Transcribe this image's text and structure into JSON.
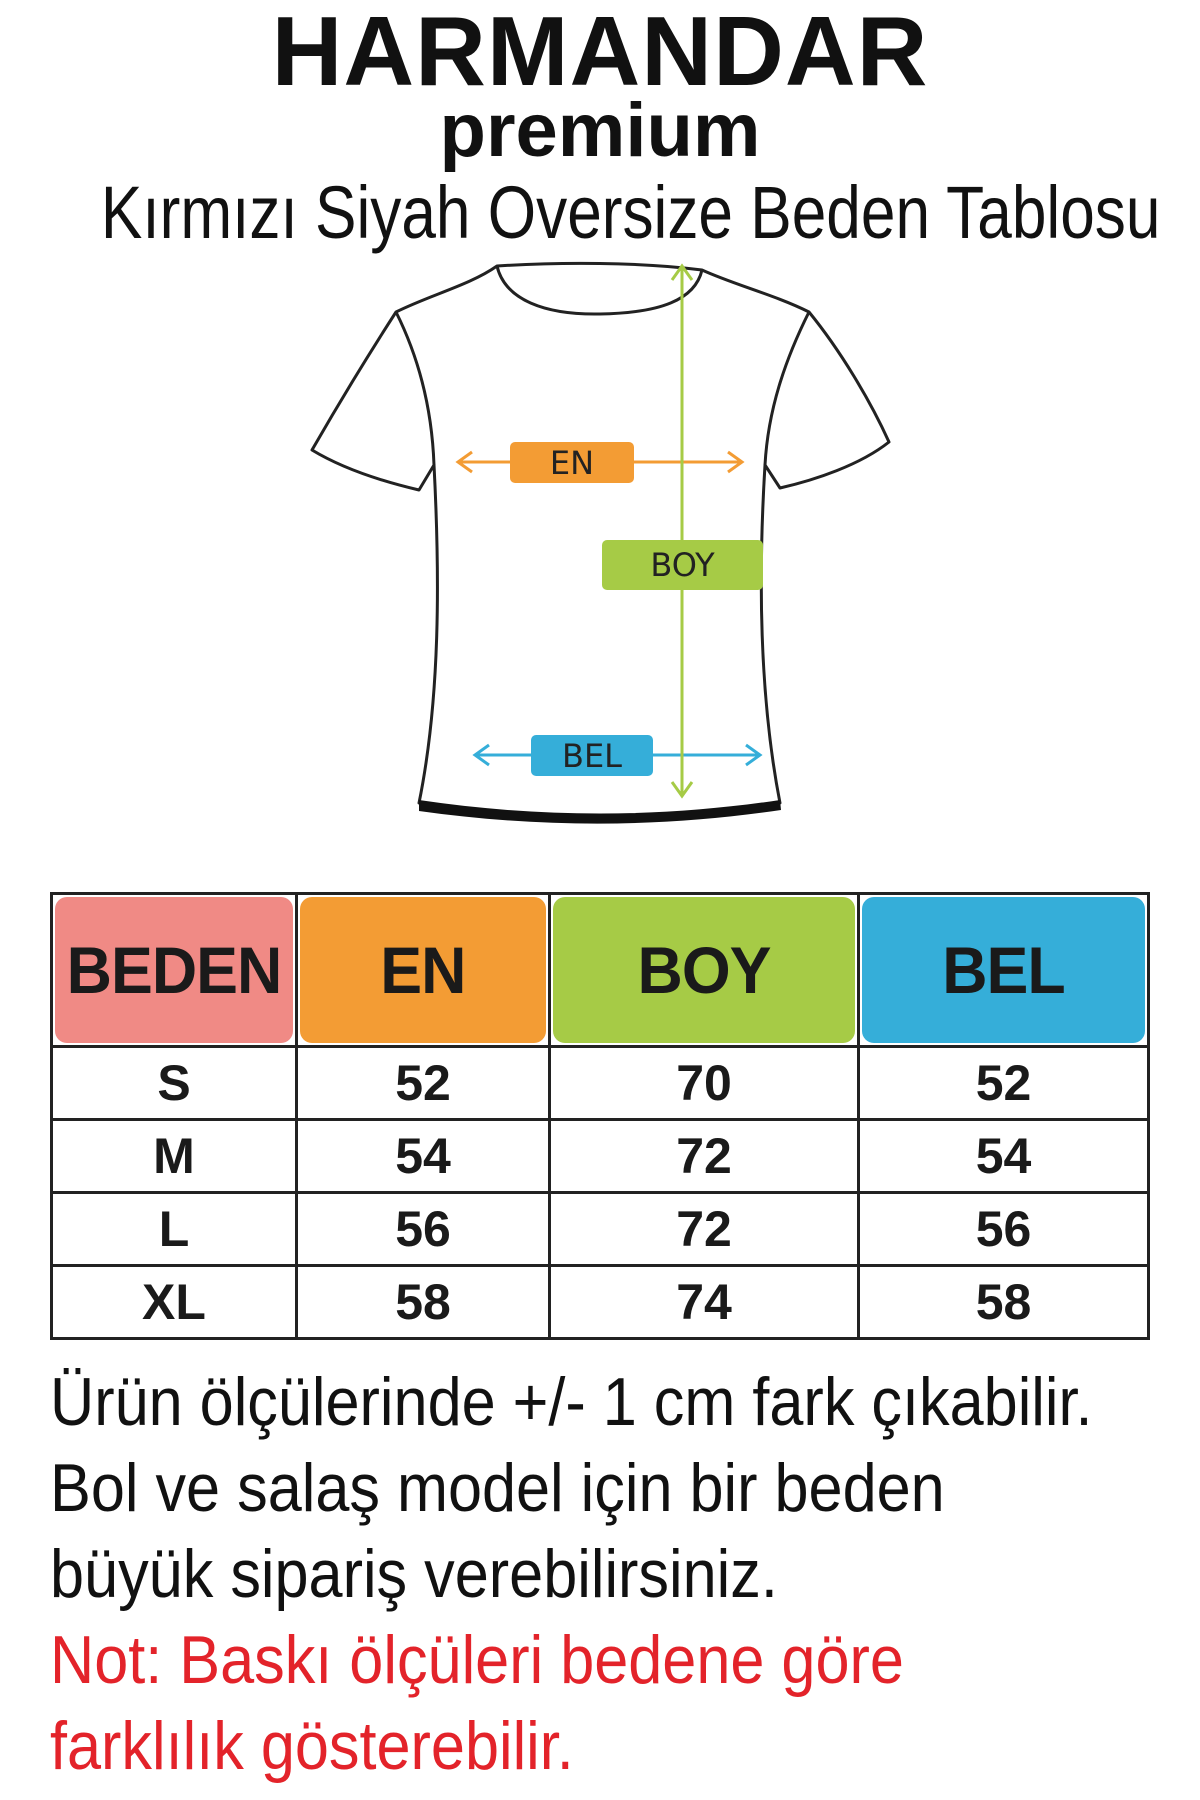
{
  "brand": {
    "name": "HARMANDAR",
    "tagline": "premium"
  },
  "title": "Kırmızı Siyah Oversize Beden Tablosu",
  "diagram": {
    "en_label": "EN",
    "boy_label": "BOY",
    "bel_label": "BEL",
    "icon": "t-shirt-icon"
  },
  "colors": {
    "beden": "#f08a85",
    "en": "#f39c34",
    "boy": "#a6cb46",
    "bel": "#35aed9",
    "note_red": "#e3232a"
  },
  "table": {
    "headers": [
      "BEDEN",
      "EN",
      "BOY",
      "BEL"
    ],
    "rows": [
      [
        "S",
        "52",
        "70",
        "52"
      ],
      [
        "M",
        "54",
        "72",
        "54"
      ],
      [
        "L",
        "56",
        "72",
        "56"
      ],
      [
        "XL",
        "58",
        "74",
        "58"
      ]
    ]
  },
  "notes": {
    "line1": "Ürün ölçülerinde +/- 1 cm fark çıkabilir.",
    "line2": "Bol ve salaş model için bir beden",
    "line3": "büyük sipariş verebilirsiniz.",
    "red_line1": "Not: Baskı ölçüleri bedene göre",
    "red_line2": "farklılık gösterebilir."
  }
}
